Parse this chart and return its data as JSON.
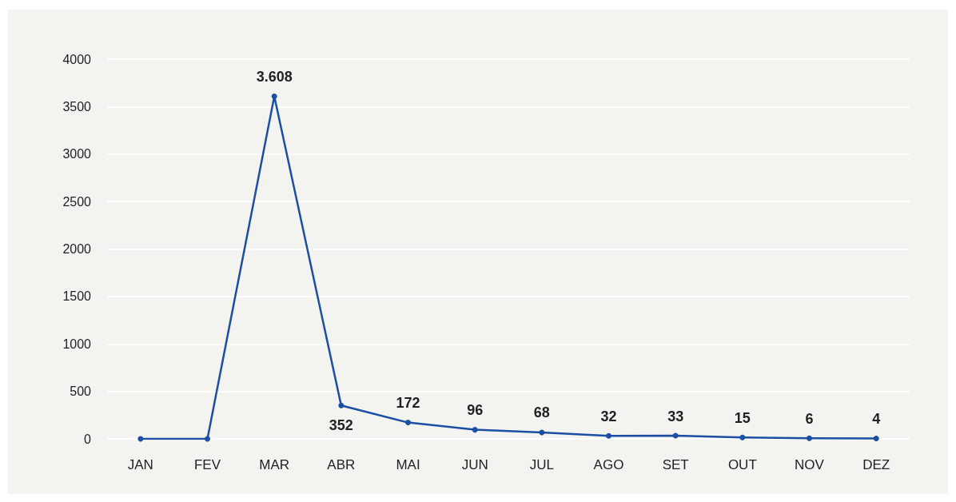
{
  "chart_data": {
    "type": "line",
    "categories": [
      "JAN",
      "FEV",
      "MAR",
      "ABR",
      "MAI",
      "JUN",
      "JUL",
      "AGO",
      "SET",
      "OUT",
      "NOV",
      "DEZ"
    ],
    "series": [
      {
        "color": "#1c4fa3",
        "values": [
          0,
          0,
          3608,
          352,
          172,
          96,
          68,
          32,
          33,
          15,
          6,
          4
        ],
        "value_labels": [
          null,
          null,
          "3.608",
          "352",
          "172",
          "96",
          "68",
          "32",
          "33",
          "15",
          "6",
          "4"
        ]
      }
    ],
    "ylim": [
      0,
      4000
    ],
    "yticks": [
      0,
      500,
      1000,
      1500,
      2000,
      2500,
      3000,
      3500,
      4000
    ],
    "grid": "y",
    "marker": "circle",
    "line_style": "solid"
  }
}
